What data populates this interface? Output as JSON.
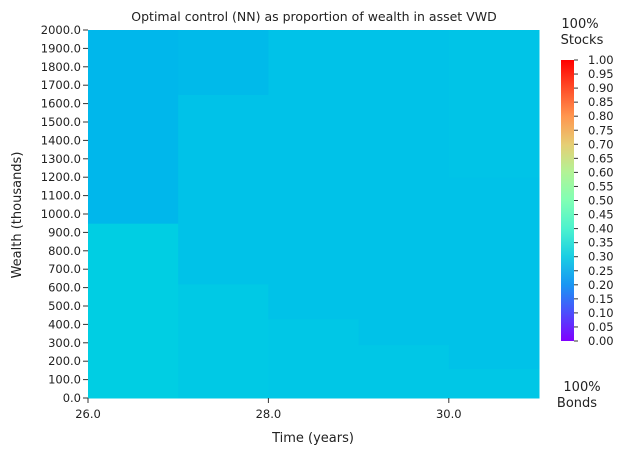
{
  "chart_data": {
    "type": "heatmap",
    "title": "Optimal control (NN) as proportion of wealth in asset VWD",
    "xlabel": "Time (years)",
    "ylabel": "Wealth (thousands)",
    "x_ticks": [
      "26.0",
      "28.0",
      "30.0"
    ],
    "y_ticks": [
      "0.0",
      "100.0",
      "200.0",
      "300.0",
      "400.0",
      "500.0",
      "600.0",
      "700.0",
      "800.0",
      "900.0",
      "1000.0",
      "1100.0",
      "1200.0",
      "1300.0",
      "1400.0",
      "1500.0",
      "1600.0",
      "1700.0",
      "1800.0",
      "1900.0",
      "2000.0"
    ],
    "xlim": [
      26,
      31
    ],
    "ylim": [
      0,
      2000
    ],
    "colormap": "rainbow",
    "colorbar": {
      "min": 0.0,
      "max": 1.0,
      "ticks": [
        "0.00",
        "0.05",
        "0.10",
        "0.15",
        "0.20",
        "0.25",
        "0.30",
        "0.35",
        "0.40",
        "0.45",
        "0.50",
        "0.55",
        "0.60",
        "0.65",
        "0.70",
        "0.75",
        "0.80",
        "0.85",
        "0.90",
        "0.95",
        "1.00"
      ],
      "top_label_1": "100%",
      "top_label_2": "Stocks",
      "bottom_label_1": "100%",
      "bottom_label_2": "Bonds"
    },
    "cells": [
      {
        "t0": 26,
        "t1": 27,
        "w0": 0,
        "w1": 950,
        "value": 0.3
      },
      {
        "t0": 26,
        "t1": 27,
        "w0": 950,
        "w1": 2000,
        "value": 0.255
      },
      {
        "t0": 27,
        "t1": 28,
        "w0": 0,
        "w1": 620,
        "value": 0.29
      },
      {
        "t0": 27,
        "t1": 28,
        "w0": 620,
        "w1": 1650,
        "value": 0.275
      },
      {
        "t0": 27,
        "t1": 28,
        "w0": 1650,
        "w1": 2000,
        "value": 0.26
      },
      {
        "t0": 28,
        "t1": 29,
        "w0": 0,
        "w1": 430,
        "value": 0.285
      },
      {
        "t0": 28,
        "t1": 29,
        "w0": 430,
        "w1": 2000,
        "value": 0.275
      },
      {
        "t0": 29,
        "t1": 30,
        "w0": 0,
        "w1": 290,
        "value": 0.285
      },
      {
        "t0": 29,
        "t1": 30,
        "w0": 290,
        "w1": 2000,
        "value": 0.275
      },
      {
        "t0": 30,
        "t1": 31,
        "w0": 0,
        "w1": 160,
        "value": 0.285
      },
      {
        "t0": 30,
        "t1": 31,
        "w0": 160,
        "w1": 1200,
        "value": 0.275
      },
      {
        "t0": 30,
        "t1": 31,
        "w0": 1200,
        "w1": 2000,
        "value": 0.28
      }
    ]
  }
}
